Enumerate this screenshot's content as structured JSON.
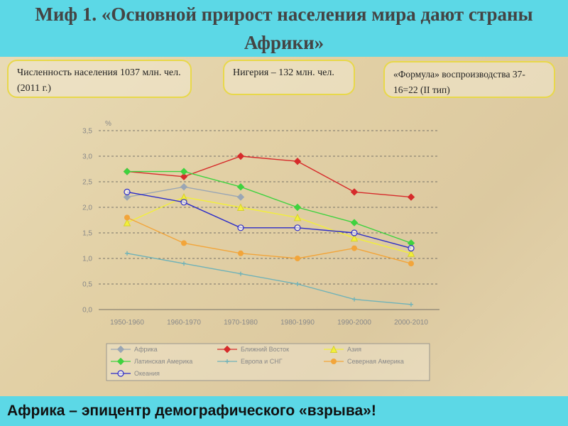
{
  "title": "Миф 1. «Основной прирост населения мира дают страны Африки»",
  "notes": [
    "Численность населения 1037 млн. чел. (2011 г.)",
    "Нигерия – 132 млн. чел.",
    "«Формула» воспроизводства 37-16=22 (II тип)"
  ],
  "footer": "Африка – эпицентр демографического «взрыва»!",
  "chart_data": {
    "type": "line",
    "ylabel": "%",
    "categories": [
      "1950-1960",
      "1960-1970",
      "1970-1980",
      "1980-1990",
      "1990-2000",
      "2000-2010"
    ],
    "ylim": [
      0,
      3.5
    ],
    "yticks": [
      "0,0",
      "0,5",
      "1,0",
      "1,5",
      "2,0",
      "2,5",
      "3,0",
      "3,5"
    ],
    "grid": true,
    "legend_position": "bottom",
    "series": [
      {
        "name": "Африка",
        "values": [
          2.2,
          2.4,
          2.2,
          null,
          null,
          null
        ],
        "color": "#9aa6b4",
        "marker": "diamond"
      },
      {
        "name": "Ближний Восток",
        "values": [
          2.7,
          2.6,
          3.0,
          2.9,
          2.3,
          2.2
        ],
        "color": "#d62b2b",
        "marker": "diamond"
      },
      {
        "name": "Азия",
        "values": [
          1.7,
          2.2,
          2.0,
          1.8,
          1.4,
          1.1
        ],
        "color": "#f2ef3a",
        "marker": "triangle"
      },
      {
        "name": "Латинская Америка",
        "values": [
          2.7,
          2.7,
          2.4,
          2.0,
          1.7,
          1.3
        ],
        "color": "#3fd23f",
        "marker": "diamond"
      },
      {
        "name": "Европа и СНГ",
        "values": [
          1.1,
          0.9,
          0.7,
          0.5,
          0.2,
          0.1
        ],
        "color": "#6fb2b8",
        "marker": "plus"
      },
      {
        "name": "Северная Америка",
        "values": [
          1.8,
          1.3,
          1.1,
          1.0,
          1.2,
          0.9
        ],
        "color": "#f2a53a",
        "marker": "circle"
      },
      {
        "name": "Океания",
        "values": [
          2.3,
          2.1,
          1.6,
          1.6,
          1.5,
          1.2
        ],
        "color": "#2b2bc8",
        "marker": "ring"
      }
    ]
  }
}
